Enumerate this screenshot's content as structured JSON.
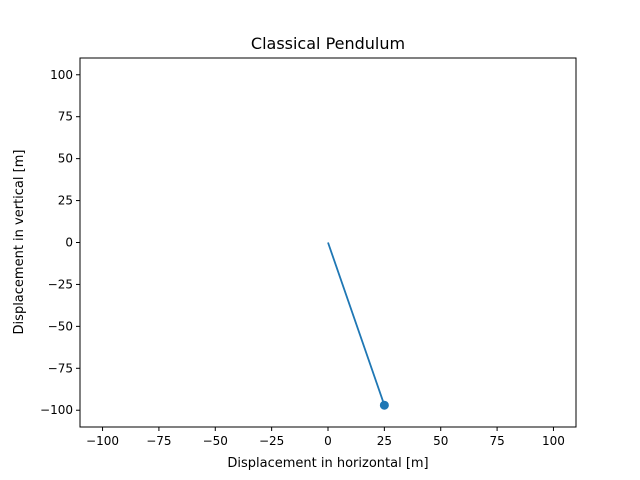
{
  "chart_data": {
    "type": "line",
    "title": "Classical Pendulum",
    "xlabel": "Displacement in horizontal [m]",
    "ylabel": "Displacement in vertical [m]",
    "xlim": [
      -110,
      110
    ],
    "ylim": [
      -110,
      110
    ],
    "xticks": [
      -100,
      -75,
      -50,
      -25,
      0,
      25,
      50,
      75,
      100
    ],
    "yticks": [
      -100,
      -75,
      -50,
      -25,
      0,
      25,
      50,
      75,
      100
    ],
    "xtick_labels": [
      "−100",
      "−75",
      "−50",
      "−25",
      "0",
      "25",
      "50",
      "75",
      "100"
    ],
    "ytick_labels": [
      "−100",
      "−75",
      "−50",
      "−25",
      "0",
      "25",
      "50",
      "75",
      "100"
    ],
    "grid": false,
    "series": [
      {
        "x": [
          0,
          25
        ],
        "y": [
          0,
          -97
        ],
        "color": "#1f77b4"
      }
    ],
    "bob": {
      "x": 25,
      "y": -97,
      "color": "#1f77b4"
    }
  }
}
